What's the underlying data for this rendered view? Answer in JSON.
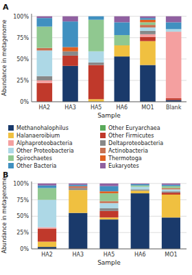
{
  "chart_data": [
    {
      "type": "bar",
      "stacked": true,
      "title": "A",
      "x_label": "Sample",
      "y_label": "Abundance in metagenome",
      "categories": [
        "HA2",
        "HA3",
        "HA5",
        "HA6",
        "MO1",
        "Blank"
      ],
      "ylim": [
        0,
        103
      ],
      "yticks": [
        {
          "value": 0,
          "label": "0%"
        },
        {
          "value": 25,
          "label": "25%"
        },
        {
          "value": 50,
          "label": "50%"
        },
        {
          "value": 75,
          "label": "75%"
        },
        {
          "value": 100,
          "label": "100%"
        }
      ],
      "grid": true,
      "legend": "bottom",
      "series": [
        {
          "name": "Methanohalophilus",
          "color": "#1a3a6b",
          "values": [
            0,
            42,
            0,
            53,
            43,
            2
          ]
        },
        {
          "name": "Other Euryarchaea",
          "color": "#5aaa5a",
          "values": [
            0,
            0,
            0,
            0,
            0,
            0
          ]
        },
        {
          "name": "Halanaeroibium",
          "color": "#f0c040",
          "values": [
            0,
            0,
            3,
            13,
            28,
            0
          ]
        },
        {
          "name": "Other Firmicutes",
          "color": "#c0392b",
          "values": [
            22,
            12,
            40,
            0,
            5,
            2
          ]
        },
        {
          "name": "Alphaproteobacteria",
          "color": "#f4a0a0",
          "values": [
            3,
            0,
            0,
            0,
            3,
            78
          ]
        },
        {
          "name": "Deltaproteobacteria",
          "color": "#888888",
          "values": [
            5,
            5,
            3,
            0,
            4,
            0
          ]
        },
        {
          "name": "Other Proteobacteria",
          "color": "#add8e6",
          "values": [
            30,
            0,
            13,
            0,
            4,
            3
          ]
        },
        {
          "name": "Actinobacteria",
          "color": "#c87050",
          "values": [
            3,
            0,
            0,
            0,
            3,
            0
          ]
        },
        {
          "name": "Spirochaetes",
          "color": "#90c890",
          "values": [
            25,
            0,
            37,
            12,
            3,
            0
          ]
        },
        {
          "name": "Thermotoga",
          "color": "#e06020",
          "values": [
            0,
            5,
            0,
            0,
            3,
            0
          ]
        },
        {
          "name": "Other Bacteria",
          "color": "#4090c0",
          "values": [
            10,
            30,
            4,
            15,
            2,
            8
          ]
        },
        {
          "name": "Eukaryotes",
          "color": "#9060a0",
          "values": [
            2,
            6,
            0,
            7,
            2,
            7
          ]
        }
      ]
    },
    {
      "type": "bar",
      "stacked": true,
      "title": "B",
      "x_label": "Sample",
      "y_label": "Abundance in metagenome",
      "categories": [
        "HA2",
        "HA3",
        "HA5",
        "HA6",
        "MO1"
      ],
      "ylim": [
        0,
        103
      ],
      "yticks": [
        {
          "value": 0,
          "label": "0%"
        },
        {
          "value": 25,
          "label": "25%"
        },
        {
          "value": 50,
          "label": "50%"
        },
        {
          "value": 75,
          "label": "75%"
        },
        {
          "value": 100,
          "label": "100%"
        }
      ],
      "grid": true,
      "series": [
        {
          "name": "Methanohalophilus",
          "color": "#1a3a6b",
          "values": [
            3,
            55,
            45,
            85,
            48
          ]
        },
        {
          "name": "Other Euryarchaea",
          "color": "#5aaa5a",
          "values": [
            0,
            0,
            0,
            0,
            0
          ]
        },
        {
          "name": "Halanaeroibium",
          "color": "#f0c040",
          "values": [
            8,
            35,
            3,
            4,
            35
          ]
        },
        {
          "name": "Other Firmicutes",
          "color": "#c0392b",
          "values": [
            20,
            0,
            10,
            0,
            3
          ]
        },
        {
          "name": "Alphaproteobacteria",
          "color": "#f4a0a0",
          "values": [
            2,
            0,
            0,
            0,
            0
          ]
        },
        {
          "name": "Deltaproteobacteria",
          "color": "#888888",
          "values": [
            0,
            3,
            4,
            2,
            2
          ]
        },
        {
          "name": "Other Proteobacteria",
          "color": "#add8e6",
          "values": [
            42,
            0,
            8,
            4,
            3
          ]
        },
        {
          "name": "Actinobacteria",
          "color": "#c87050",
          "values": [
            0,
            3,
            3,
            0,
            2
          ]
        },
        {
          "name": "Spirochaetes",
          "color": "#90c890",
          "values": [
            18,
            0,
            12,
            2,
            3
          ]
        },
        {
          "name": "Thermotoga",
          "color": "#e06020",
          "values": [
            0,
            0,
            3,
            0,
            0
          ]
        },
        {
          "name": "Other Bacteria",
          "color": "#4090c0",
          "values": [
            4,
            2,
            8,
            2,
            2
          ]
        },
        {
          "name": "Eukaryotes",
          "color": "#9060a0",
          "values": [
            3,
            2,
            4,
            1,
            2
          ]
        }
      ]
    }
  ]
}
